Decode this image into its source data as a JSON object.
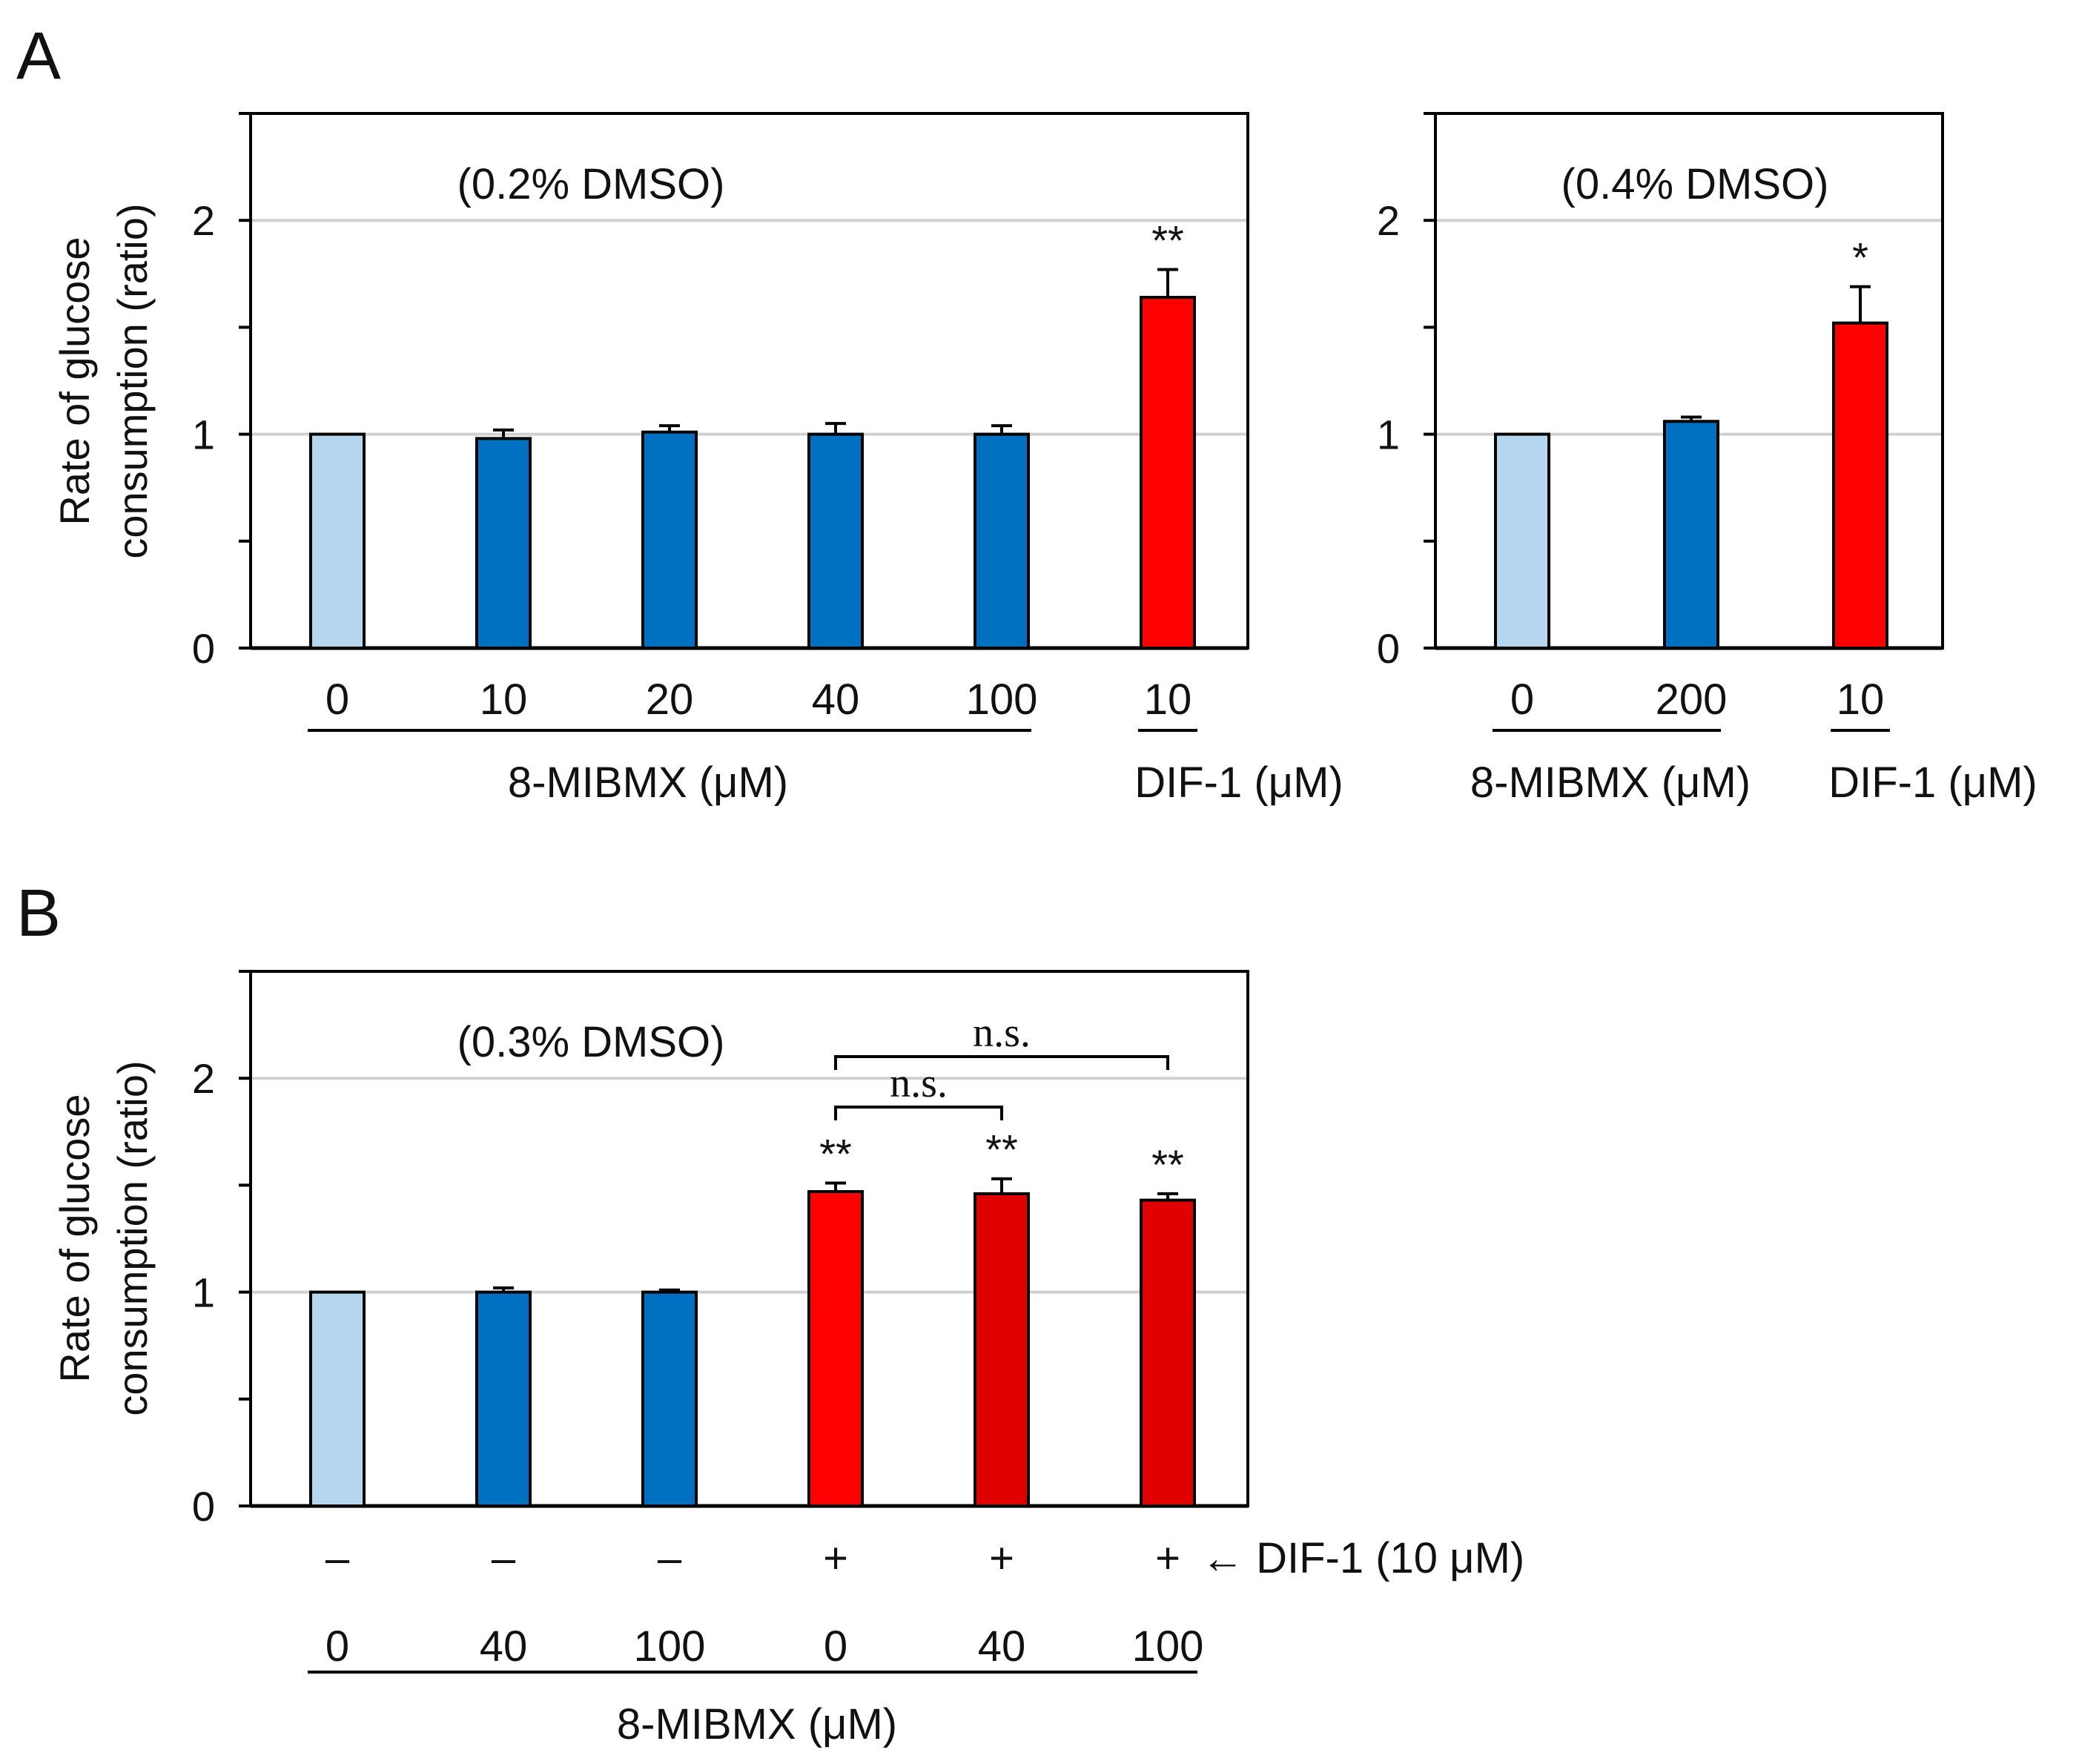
{
  "colors": {
    "light_blue": "#b5d6ee",
    "blue": "#0070c0",
    "red": "#ff0000",
    "dark_red": "#e00000",
    "grid": "#d0d0d0",
    "axis": "#000000"
  },
  "chart_data": [
    {
      "panel_label": "A",
      "type": "bar",
      "title": "(0.2% DMSO)",
      "ylabel_line1": "Rate of glucose",
      "ylabel_line2": "consumption (ratio)",
      "ylim": [
        0,
        2.5
      ],
      "yticks": [
        0,
        1,
        2
      ],
      "grid": true,
      "categories": [
        "0",
        "10",
        "20",
        "40",
        "100",
        "10"
      ],
      "values": [
        1.0,
        0.98,
        1.01,
        1.0,
        1.0,
        1.64
      ],
      "errors": [
        0,
        0.04,
        0.03,
        0.05,
        0.04,
        0.13
      ],
      "colors": [
        "light_blue",
        "blue",
        "blue",
        "blue",
        "blue",
        "red"
      ],
      "significance": [
        "",
        "",
        "",
        "",
        "",
        "**"
      ],
      "groups": [
        {
          "label": "8-MIBMX (μM)",
          "from": 0,
          "to": 4
        },
        {
          "label": "DIF-1 (μM)",
          "from": 5,
          "to": 5
        }
      ]
    },
    {
      "panel_label": "",
      "type": "bar",
      "title": "(0.4% DMSO)",
      "ylim": [
        0,
        2.5
      ],
      "yticks": [
        0,
        1,
        2
      ],
      "grid": true,
      "categories": [
        "0",
        "200",
        "10"
      ],
      "values": [
        1.0,
        1.06,
        1.52
      ],
      "errors": [
        0,
        0.02,
        0.17
      ],
      "colors": [
        "light_blue",
        "blue",
        "red"
      ],
      "significance": [
        "",
        "",
        "*"
      ],
      "groups": [
        {
          "label": "8-MIBMX (μM)",
          "from": 0,
          "to": 1
        },
        {
          "label": "DIF-1 (μM)",
          "from": 2,
          "to": 2
        }
      ]
    },
    {
      "panel_label": "B",
      "type": "bar",
      "title": "(0.3% DMSO)",
      "ylabel_line1": "Rate of glucose",
      "ylabel_line2": "consumption (ratio)",
      "ylim": [
        0,
        2.5
      ],
      "yticks": [
        0,
        1,
        2
      ],
      "grid": true,
      "categories": [
        "0",
        "40",
        "100",
        "0",
        "40",
        "100"
      ],
      "dif1_signs": [
        "–",
        "–",
        "–",
        "+",
        "+",
        "+"
      ],
      "dif1_label": "← DIF-1 (10 μM)",
      "values": [
        1.0,
        1.0,
        1.0,
        1.47,
        1.46,
        1.43
      ],
      "errors": [
        0,
        0.02,
        0.01,
        0.04,
        0.07,
        0.03
      ],
      "colors": [
        "light_blue",
        "blue",
        "blue",
        "red",
        "dark_red",
        "dark_red"
      ],
      "significance": [
        "",
        "",
        "",
        "**",
        "**",
        "**"
      ],
      "brackets": [
        {
          "from": 3,
          "to": 5,
          "label": "n.s."
        },
        {
          "from": 3,
          "to": 4,
          "label": "n.s."
        }
      ],
      "groups": [
        {
          "label": "8-MIBMX (μM)",
          "from": 0,
          "to": 5
        }
      ]
    }
  ]
}
